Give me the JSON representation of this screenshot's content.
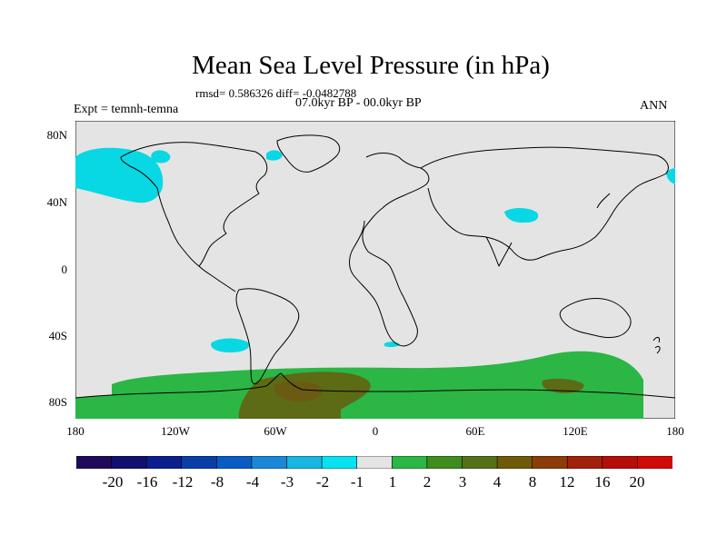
{
  "title": "Mean Sea Level Pressure (in hPa)",
  "stats": "rmsd= 0.586326 diff= -0.0482788",
  "period": "07.0kyr BP - 00.0kyr BP",
  "experiment": "Expt = temnh-temna",
  "season": "ANN",
  "lat_labels": [
    "80N",
    "40N",
    "0",
    "40S",
    "80S"
  ],
  "lon_labels": [
    "180",
    "120W",
    "60W",
    "0",
    "60E",
    "120E",
    "180"
  ],
  "colorbar": {
    "labels": [
      "-20",
      "-16",
      "-12",
      "-8",
      "-4",
      "-3",
      "-2",
      "-1",
      "1",
      "2",
      "3",
      "4",
      "8",
      "12",
      "16",
      "20"
    ],
    "colors": [
      "#200a5c",
      "#10106e",
      "#0a1f8c",
      "#0a3ea6",
      "#0a5cc4",
      "#1a88d6",
      "#18b6e0",
      "#08e2ee",
      "#e4e4e4",
      "#2bb646",
      "#3f8c1f",
      "#567018",
      "#6e5a08",
      "#8c3c06",
      "#a0200a",
      "#b40e0a",
      "#d00a08"
    ]
  },
  "colors": {
    "background": "#e4e4e4",
    "negative": "#08d8e4",
    "positive": "#2bb646",
    "high": "#5d6b15",
    "higher": "#6b5a12",
    "coast": "#000000"
  }
}
